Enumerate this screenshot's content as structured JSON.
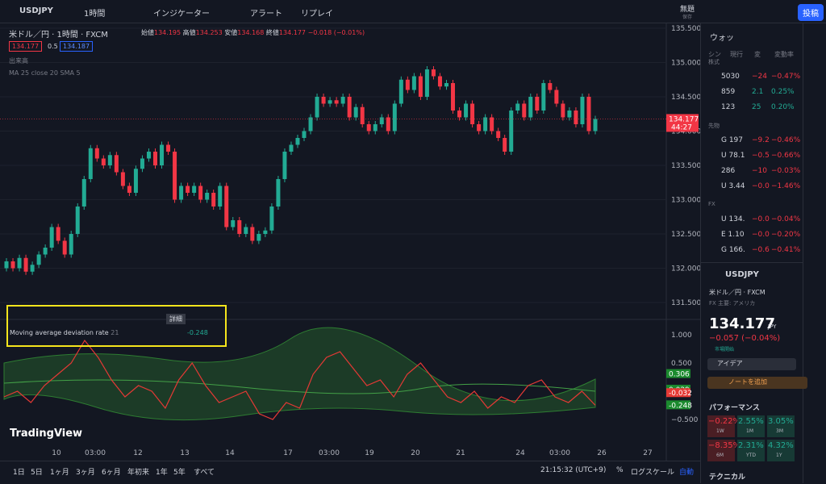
{
  "toolbar": {
    "symbol": "USDJPY",
    "interval": "1時間",
    "indicators": "インジケーター",
    "alert": "アラート",
    "replay": "リプレイ",
    "layout_name": "無題",
    "layout_saved": "保存",
    "publish": "投稿"
  },
  "legend": {
    "title": "米ドル／円 · 1時間 · FXCM",
    "open_label": "始値",
    "open": "134.195",
    "high_label": "高値",
    "high": "134.253",
    "low_label": "安値",
    "low": "134.168",
    "close_label": "終値",
    "close": "134.177",
    "change": "−0.018 (−0.01%)",
    "sell": "134.177",
    "spread": "0.5",
    "buy": "134.187",
    "volume": "出来高",
    "ma": "MA 25 close 20 SMA 5"
  },
  "indicator": {
    "name": "Moving average deviation rate",
    "length": "21",
    "value": "-0.248",
    "tooltip": "詳細"
  },
  "logo": "TradingView",
  "price_chart": {
    "type": "candlestick",
    "ylim": [
      131.3,
      135.6
    ],
    "yticks": [
      {
        "value": 135.5,
        "label": "135.500"
      },
      {
        "value": 135,
        "label": "135.000"
      },
      {
        "value": 134.5,
        "label": "134.500"
      },
      {
        "value": 134,
        "label": "134.000"
      },
      {
        "value": 133.5,
        "label": "133.500"
      },
      {
        "value": 133,
        "label": "133.000"
      },
      {
        "value": 132.5,
        "label": "132.500"
      },
      {
        "value": 132,
        "label": "132.000"
      },
      {
        "value": 131.5,
        "label": "131.500"
      }
    ],
    "first_open": 132.0,
    "closes": [
      132.1,
      132.0,
      132.15,
      131.95,
      132.05,
      132.2,
      132.3,
      132.6,
      132.4,
      132.2,
      132.5,
      132.9,
      133.3,
      133.75,
      133.6,
      133.5,
      133.65,
      133.4,
      133.2,
      133.1,
      133.45,
      133.6,
      133.7,
      133.5,
      133.8,
      133.7,
      133.0,
      133.2,
      133.1,
      133.2,
      133.0,
      133.1,
      132.9,
      133.2,
      132.6,
      132.7,
      132.5,
      132.6,
      132.4,
      132.5,
      132.55,
      132.9,
      133.3,
      133.7,
      133.8,
      133.9,
      134.0,
      134.2,
      134.5,
      134.4,
      134.45,
      134.4,
      134.5,
      134.2,
      134.35,
      134.1,
      134.0,
      134.1,
      134.2,
      134.0,
      134.4,
      134.75,
      134.6,
      134.8,
      134.5,
      134.9,
      134.8,
      134.65,
      134.7,
      134.3,
      134.2,
      134.4,
      134.1,
      134.0,
      134.2,
      134.0,
      133.9,
      133.7,
      134.3,
      134.4,
      134.2,
      134.5,
      134.3,
      134.7,
      134.6,
      134.4,
      134.2,
      134.3,
      134.1,
      134.5,
      134.0,
      134.177
    ],
    "last_price": {
      "value": 134.177,
      "label": "134.177"
    },
    "countdown": "44:27"
  },
  "indicator_chart": {
    "type": "line",
    "color": "#e53935",
    "ylim": [
      -0.65,
      1.1
    ],
    "yticks": [
      {
        "value": 1,
        "label": "1.000"
      },
      {
        "value": 0.5,
        "label": "0.500"
      },
      {
        "value": -0.5,
        "label": "−0.500"
      }
    ],
    "values": [
      -0.1,
      0.0,
      -0.2,
      0.1,
      0.3,
      0.5,
      0.9,
      0.6,
      0.2,
      -0.1,
      0.1,
      0.0,
      -0.3,
      0.2,
      0.5,
      0.1,
      -0.2,
      -0.1,
      0.0,
      -0.4,
      -0.5,
      -0.2,
      -0.3,
      0.3,
      0.6,
      0.7,
      0.4,
      0.1,
      0.2,
      -0.1,
      0.3,
      0.5,
      0.2,
      -0.1,
      -0.2,
      0.0,
      -0.3,
      -0.1,
      -0.2,
      0.1,
      0.2,
      -0.1,
      -0.2,
      0.0,
      -0.248
    ],
    "labels": [
      {
        "value": 0.306,
        "label": "0.306",
        "color": "#1b8a2e"
      },
      {
        "value": 0.029,
        "label": "0.029",
        "color": "#1b8a2e"
      },
      {
        "value": -0.032,
        "label": "-0.032",
        "color": "#e53935"
      },
      {
        "value": -0.248,
        "label": "-0.248",
        "color": "#1b8a2e"
      }
    ]
  },
  "time_axis": [
    "10",
    "03:00",
    "12",
    "13",
    "14",
    "17",
    "03:00",
    "19",
    "20",
    "21",
    "24",
    "03:00",
    "26",
    "27"
  ],
  "bottom_bar": {
    "ranges": [
      "1日",
      "5日",
      "1ヶ月",
      "3ヶ月",
      "6ヶ月",
      "年初来",
      "1年",
      "5年",
      "すべて"
    ],
    "clock": "21:15:32 (UTC+9)",
    "percent": "%",
    "log": "ログスケール",
    "auto": "自動"
  },
  "watchlist": {
    "title": "ウォッ",
    "columns": [
      "シン",
      "現行",
      "変",
      "変動率"
    ],
    "sections": [
      {
        "name": "株式",
        "rows": [
          [
            "5030",
            "−24",
            "−0.47%"
          ],
          [
            "859",
            "2.1",
            "0.25%"
          ],
          [
            "123",
            "25",
            "0.20%"
          ]
        ]
      },
      {
        "name": "先物",
        "rows": [
          [
            "G 197",
            "−9.2",
            "−0.46%"
          ],
          [
            "U 78.1",
            "−0.5",
            "−0.66%"
          ],
          [
            "286",
            "−10",
            "−0.03%"
          ],
          [
            "U 3.44",
            "−0.0",
            "−1.46%"
          ]
        ]
      },
      {
        "name": "FX",
        "rows": [
          [
            "U 134.",
            "−0.0",
            "−0.04%"
          ],
          [
            "E 1.10",
            "−0.0",
            "−0.20%"
          ],
          [
            "G 166.",
            "−0.6",
            "−0.41%"
          ]
        ]
      }
    ]
  },
  "details": {
    "symbol": "USDJPY",
    "desc": "米ドル／円 · FXCM",
    "type": "FX 主要: アメリカ",
    "price": "134.177",
    "currency": "JPY",
    "change": "−0.057 (−0.04%)",
    "status": "市場開始",
    "ideas": "アイデア",
    "add_note": "ノートを追加",
    "performance": "パフォーマンス",
    "perf": [
      [
        "−0.22%",
        "1W"
      ],
      [
        "2.55%",
        "1M"
      ],
      [
        "3.05%",
        "3M"
      ],
      [
        "−8.35%",
        "6M"
      ],
      [
        "2.31%",
        "YTD"
      ],
      [
        "4.32%",
        "1Y"
      ]
    ],
    "technical": "テクニカル"
  }
}
